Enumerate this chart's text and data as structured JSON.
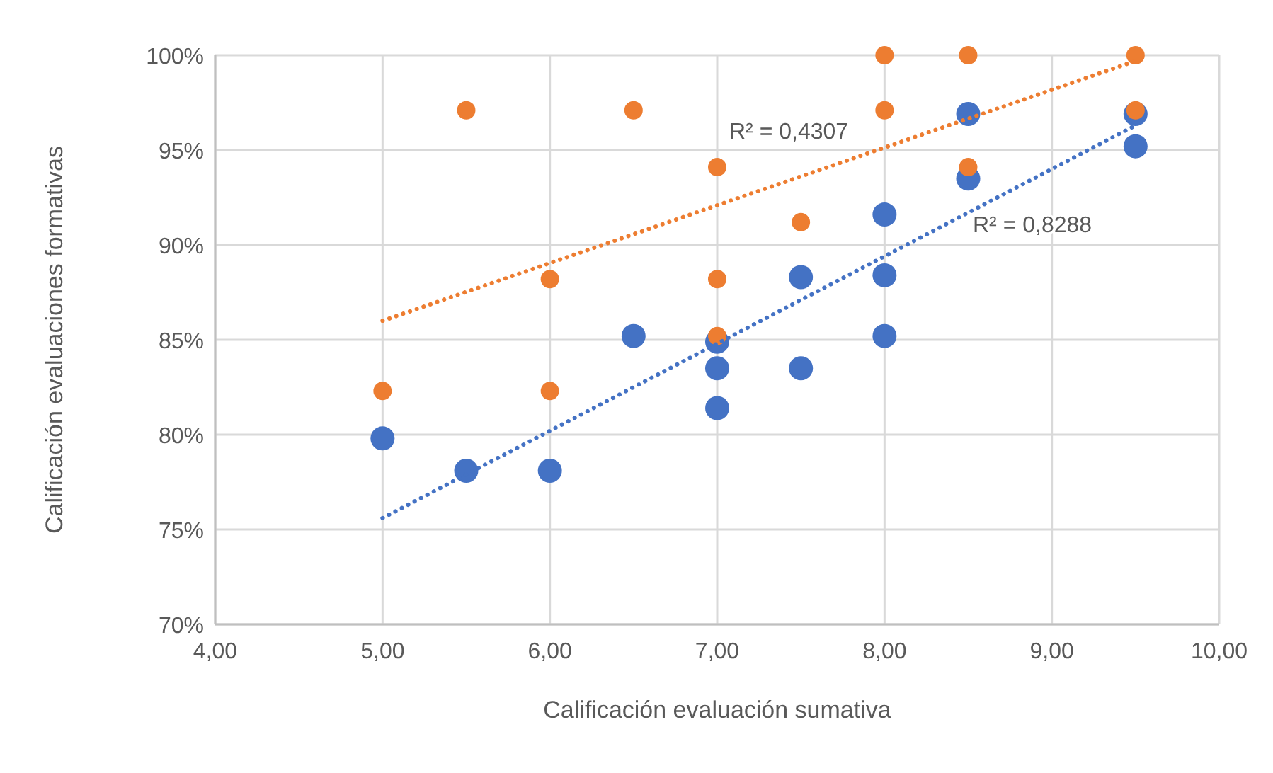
{
  "chart_data": {
    "type": "scatter",
    "xlabel": "Calificación evaluación sumativa",
    "ylabel": "Calificación evaluaciones formativas",
    "xlim": [
      4,
      10
    ],
    "xticks": [
      {
        "value": 4,
        "label": "4,00"
      },
      {
        "value": 5,
        "label": "5,00"
      },
      {
        "value": 6,
        "label": "6,00"
      },
      {
        "value": 7,
        "label": "7,00"
      },
      {
        "value": 8,
        "label": "8,00"
      },
      {
        "value": 9,
        "label": "9,00"
      },
      {
        "value": 10,
        "label": "10,00"
      }
    ],
    "ylim": [
      70,
      100
    ],
    "yticks": [
      {
        "value": 70,
        "label": "70%"
      },
      {
        "value": 75,
        "label": "75%"
      },
      {
        "value": 80,
        "label": "80%"
      },
      {
        "value": 85,
        "label": "85%"
      },
      {
        "value": 90,
        "label": "90%"
      },
      {
        "value": 95,
        "label": "95%"
      },
      {
        "value": 100,
        "label": "100%"
      }
    ],
    "grid": true,
    "series": [
      {
        "marker": "circle",
        "color": "#4472c4",
        "x": [
          5,
          5.5,
          6,
          6.5,
          7,
          7,
          7,
          7.5,
          7.5,
          8,
          8,
          8,
          8.5,
          8.5,
          9.5,
          9.5
        ],
        "values": [
          79.8,
          78.1,
          78.1,
          85.2,
          84.9,
          83.5,
          81.4,
          88.3,
          83.5,
          91.6,
          88.4,
          85.2,
          96.9,
          93.5,
          96.9,
          95.2
        ]
      },
      {
        "marker": "circle",
        "color": "#ed7d31",
        "x": [
          5,
          5.5,
          6,
          6,
          6.5,
          7,
          7,
          7,
          7.5,
          8,
          8,
          8.5,
          8.5,
          9.5,
          9.5
        ],
        "values": [
          82.3,
          97.1,
          88.2,
          82.3,
          97.1,
          94.1,
          88.2,
          85.2,
          91.2,
          100,
          97.1,
          100,
          94.1,
          100,
          97.1
        ]
      },
      {
        "type": "line",
        "color": "#ed7d31",
        "line_style": "dotted",
        "x": [
          5,
          9.5
        ],
        "values": [
          86.0,
          99.7
        ]
      },
      {
        "type": "line",
        "color": "#4472c4",
        "line_style": "dotted",
        "x": [
          5,
          9.5
        ],
        "values": [
          75.6,
          96.3
        ]
      }
    ],
    "annotations": [
      "R² = 0,4307",
      "R² = 0,8288"
    ]
  }
}
